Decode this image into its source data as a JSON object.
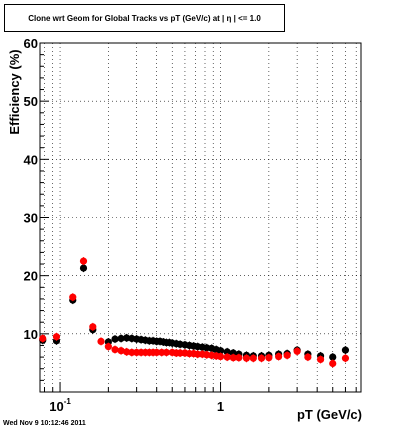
{
  "title": "Clone wrt Geom for Global Tracks vs pT (GeV/c) at |  η | <= 1.0",
  "footer": "Wed Nov  9 10:12:46 2011",
  "chart_data": {
    "type": "scatter",
    "title": "Clone wrt Geom for Global Tracks vs pT (GeV/c) at |  η | <= 1.0",
    "xlabel": "pT (GeV/c)",
    "ylabel": "Efficiency (%)",
    "xscale": "log",
    "xlim": [
      0.075,
      7.5
    ],
    "ylim": [
      0,
      60
    ],
    "yticks": [
      10,
      20,
      30,
      40,
      50,
      60
    ],
    "xtick_labels": [
      {
        "value": 0.1,
        "label": "10",
        "sup": "-1"
      },
      {
        "value": 1,
        "label": "1",
        "sup": ""
      }
    ],
    "grid": true,
    "series": [
      {
        "color": "#000000",
        "points": [
          [
            0.078,
            8.9
          ],
          [
            0.095,
            8.8
          ],
          [
            0.12,
            15.8
          ],
          [
            0.14,
            21.3
          ],
          [
            0.16,
            10.7
          ],
          [
            0.2,
            8.6
          ],
          [
            0.22,
            9.1
          ],
          [
            0.24,
            9.2
          ],
          [
            0.26,
            9.3
          ],
          [
            0.28,
            9.2
          ],
          [
            0.3,
            9.1
          ],
          [
            0.32,
            9.0
          ],
          [
            0.34,
            8.9
          ],
          [
            0.36,
            8.8
          ],
          [
            0.38,
            8.8
          ],
          [
            0.4,
            8.7
          ],
          [
            0.42,
            8.7
          ],
          [
            0.44,
            8.6
          ],
          [
            0.46,
            8.5
          ],
          [
            0.48,
            8.5
          ],
          [
            0.5,
            8.4
          ],
          [
            0.53,
            8.3
          ],
          [
            0.56,
            8.2
          ],
          [
            0.6,
            8.1
          ],
          [
            0.64,
            8.0
          ],
          [
            0.68,
            7.9
          ],
          [
            0.72,
            7.8
          ],
          [
            0.77,
            7.7
          ],
          [
            0.82,
            7.6
          ],
          [
            0.88,
            7.5
          ],
          [
            0.94,
            7.3
          ],
          [
            1.0,
            7.1
          ],
          [
            1.1,
            6.9
          ],
          [
            1.2,
            6.7
          ],
          [
            1.3,
            6.5
          ],
          [
            1.45,
            6.3
          ],
          [
            1.6,
            6.2
          ],
          [
            1.8,
            6.2
          ],
          [
            2.0,
            6.3
          ],
          [
            2.3,
            6.5
          ],
          [
            2.6,
            6.6
          ],
          [
            3.0,
            7.2
          ],
          [
            3.5,
            6.5
          ],
          [
            4.2,
            6.2
          ],
          [
            5.0,
            6.0
          ],
          [
            6.0,
            7.2
          ]
        ]
      },
      {
        "color": "#ff0000",
        "points": [
          [
            0.078,
            9.2
          ],
          [
            0.095,
            9.5
          ],
          [
            0.12,
            16.3
          ],
          [
            0.14,
            22.5
          ],
          [
            0.16,
            11.2
          ],
          [
            0.18,
            8.7
          ],
          [
            0.2,
            7.8
          ],
          [
            0.22,
            7.3
          ],
          [
            0.24,
            7.1
          ],
          [
            0.26,
            6.9
          ],
          [
            0.28,
            6.8
          ],
          [
            0.3,
            6.8
          ],
          [
            0.32,
            6.8
          ],
          [
            0.34,
            6.8
          ],
          [
            0.36,
            6.8
          ],
          [
            0.38,
            6.8
          ],
          [
            0.4,
            6.8
          ],
          [
            0.43,
            6.8
          ],
          [
            0.46,
            6.8
          ],
          [
            0.5,
            6.8
          ],
          [
            0.53,
            6.7
          ],
          [
            0.56,
            6.7
          ],
          [
            0.6,
            6.7
          ],
          [
            0.64,
            6.6
          ],
          [
            0.68,
            6.6
          ],
          [
            0.72,
            6.5
          ],
          [
            0.77,
            6.5
          ],
          [
            0.82,
            6.4
          ],
          [
            0.88,
            6.3
          ],
          [
            0.94,
            6.2
          ],
          [
            1.0,
            6.1
          ],
          [
            1.1,
            6.0
          ],
          [
            1.2,
            5.9
          ],
          [
            1.3,
            5.9
          ],
          [
            1.45,
            5.8
          ],
          [
            1.6,
            5.8
          ],
          [
            1.8,
            5.8
          ],
          [
            2.0,
            5.9
          ],
          [
            2.3,
            6.1
          ],
          [
            2.6,
            6.3
          ],
          [
            3.0,
            7.0
          ],
          [
            3.5,
            6.0
          ],
          [
            4.2,
            5.6
          ],
          [
            5.0,
            4.9
          ],
          [
            6.0,
            5.8
          ]
        ]
      }
    ]
  }
}
